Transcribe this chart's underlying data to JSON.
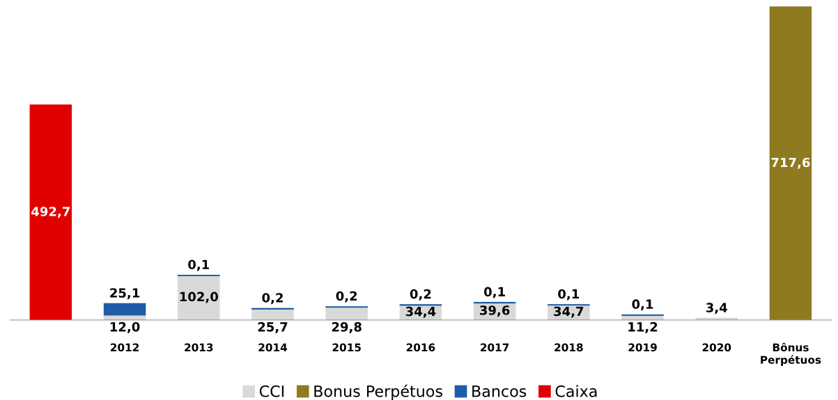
{
  "chart_data": {
    "type": "bar",
    "stacked": true,
    "legend": "bottom",
    "grid": false,
    "categories": [
      null,
      "2012",
      "2013",
      "2014",
      "2015",
      "2016",
      "2017",
      "2018",
      "2019",
      "2020",
      "Bônus\nPerpétuos"
    ],
    "series": [
      {
        "name": "CCI",
        "color": "#d9d9d9",
        "values": [
          null,
          12.0,
          102.0,
          25.7,
          29.8,
          34.4,
          39.6,
          34.7,
          11.2,
          3.4,
          null
        ],
        "value_labels": [
          null,
          "12,0",
          "102,0",
          "25,7",
          "29,8",
          "34,4",
          "39,6",
          "34,7",
          "11,2",
          "3,4",
          null
        ]
      },
      {
        "name": "Bonus Perpétuos",
        "color": "#8f7a20",
        "values": [
          null,
          null,
          null,
          null,
          null,
          null,
          null,
          null,
          null,
          null,
          717.6
        ],
        "value_labels": [
          null,
          null,
          null,
          null,
          null,
          null,
          null,
          null,
          null,
          null,
          "717,6"
        ]
      },
      {
        "name": "Bancos",
        "color": "#1f5ca8",
        "values": [
          null,
          25.1,
          0.1,
          0.2,
          0.2,
          0.2,
          0.1,
          0.1,
          0.1,
          null,
          null
        ],
        "value_labels": [
          null,
          "25,1",
          "0,1",
          "0,2",
          "0,2",
          "0,2",
          "0,1",
          "0,1",
          "0,1",
          null,
          null
        ]
      },
      {
        "name": "Caixa",
        "color": "#e00000",
        "values": [
          492.7,
          null,
          null,
          null,
          null,
          null,
          null,
          null,
          null,
          null,
          null
        ],
        "value_labels": [
          "492,7",
          null,
          null,
          null,
          null,
          null,
          null,
          null,
          null,
          null,
          null
        ]
      }
    ]
  }
}
